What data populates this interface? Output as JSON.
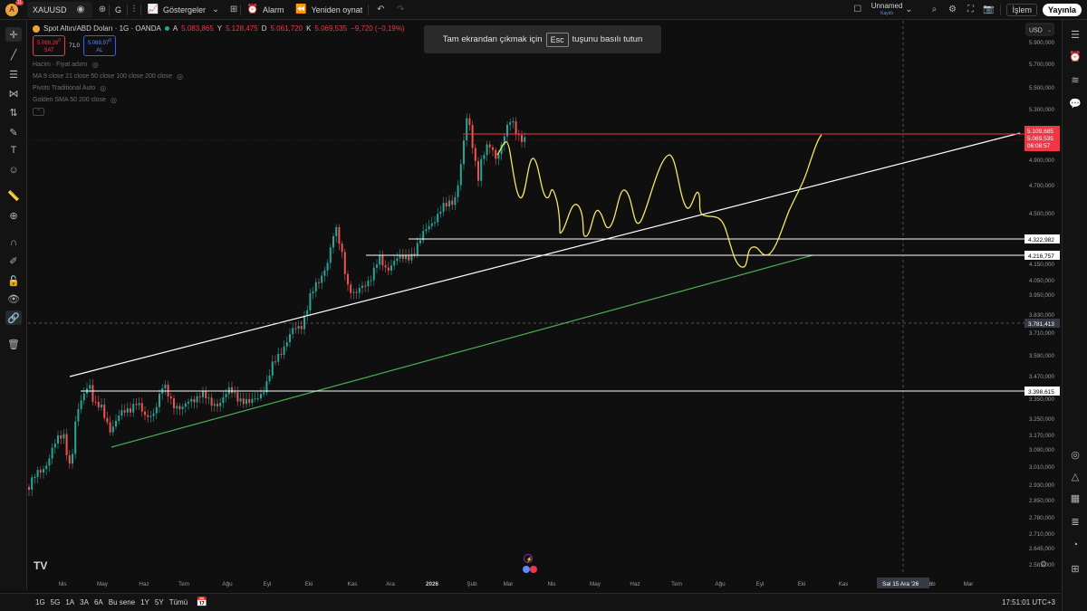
{
  "topbar": {
    "avatar_letter": "A",
    "notification_count": "11",
    "symbol": "XAUUSD",
    "interval": "G",
    "indicators_label": "Göstergeler",
    "alert_label": "Alarm",
    "replay_label": "Yeniden oynat",
    "layout_name": "Unnamed",
    "layout_status": "Kayıtlı",
    "trade_label": "İşlem",
    "publish_label": "Yayınla"
  },
  "legend": {
    "title": "Spot Altın/ABD Doları · 1G · OANDA",
    "open_label": "A",
    "open": "5.083,865",
    "high_label": "Y",
    "high": "5.128,475",
    "low_label": "D",
    "low": "5.061,720",
    "close_label": "K",
    "close": "5.069,535",
    "change": "−9,720 (−0,19%)",
    "sell_price": "5.069,26",
    "sell_sup": "0",
    "sell_label": "SAT",
    "spread": "71,0",
    "buy_price": "5.069,97",
    "buy_sup": "0",
    "buy_label": "AL",
    "indicators": [
      "Hacim · Fiyat adımı",
      "MA 9 close 21 close 50 close 100 close 200 close",
      "Pivots Traditional Auto",
      "Golden SMA 50 200 close"
    ]
  },
  "toast": {
    "before": "Tam ekrandan çıkmak için",
    "key": "Esc",
    "after": "tuşunu basılı tutun"
  },
  "price_axis": {
    "currency": "USD",
    "ticks": [
      "5.900,000",
      "5.700,000",
      "5.500,000",
      "5.300,000",
      "4.900,000",
      "4.700,000",
      "4.500,000",
      "4.150,000",
      "4.050,000",
      "3.950,000",
      "3.830,000",
      "3.710,000",
      "3.590,000",
      "3.470,000",
      "3.350,000",
      "3.250,000",
      "3.170,000",
      "3.090,000",
      "3.010,000",
      "2.930,000",
      "2.850,000",
      "2.780,000",
      "2.710,000",
      "2.645,000",
      "2.581,000"
    ],
    "labels": {
      "current_price": "5.069,535",
      "countdown": "06:08:57",
      "line_top": "5.109,685",
      "line_1": "4.322,982",
      "line_2": "4.216,757",
      "crosshair": "3.781,413",
      "line_3": "3.398,615"
    }
  },
  "time_axis": {
    "ticks": [
      "Nis",
      "May",
      "Haz",
      "Tem",
      "Ağu",
      "Eyl",
      "Eki",
      "Kas",
      "Ara",
      "2026",
      "Şub",
      "Mar",
      "Nis",
      "May",
      "Haz",
      "Tem",
      "Ağu",
      "Eyl",
      "Eki",
      "Kas",
      "Ara '26",
      "Şub",
      "Mar"
    ],
    "crosshair_label": "Sal 15 Ara '26"
  },
  "bottombar": {
    "ranges": [
      "1G",
      "5G",
      "1A",
      "3A",
      "6A",
      "Bu sene",
      "1Y",
      "5Y",
      "Tümü"
    ],
    "clock": "17:51:01 UTC+3"
  },
  "colors": {
    "background": "#0f0f0f",
    "up_candle": "#26a69a",
    "down_candle": "#ef5350",
    "current_price": "#f23645",
    "trendline_white": "#ffffff",
    "trendline_green": "#4caf50",
    "projection_yellow": "#f5e663"
  },
  "icons": {
    "left": [
      "crosshair-icon",
      "trendline-icon",
      "fib-icon",
      "pattern-icon",
      "long-short-icon",
      "brush-icon",
      "text-icon",
      "emoji-icon",
      "ruler-icon",
      "zoom-icon",
      "magnet-icon",
      "lock-draw-icon",
      "lock-icon",
      "eye-icon",
      "link-icon",
      "trash-icon"
    ],
    "right": [
      "watchlist-icon",
      "alerts-icon",
      "layers-icon",
      "chat-icon",
      "target-icon",
      "ideas-icon",
      "calendar-icon",
      "news-icon",
      "pie-icon",
      "grid-icon"
    ]
  }
}
